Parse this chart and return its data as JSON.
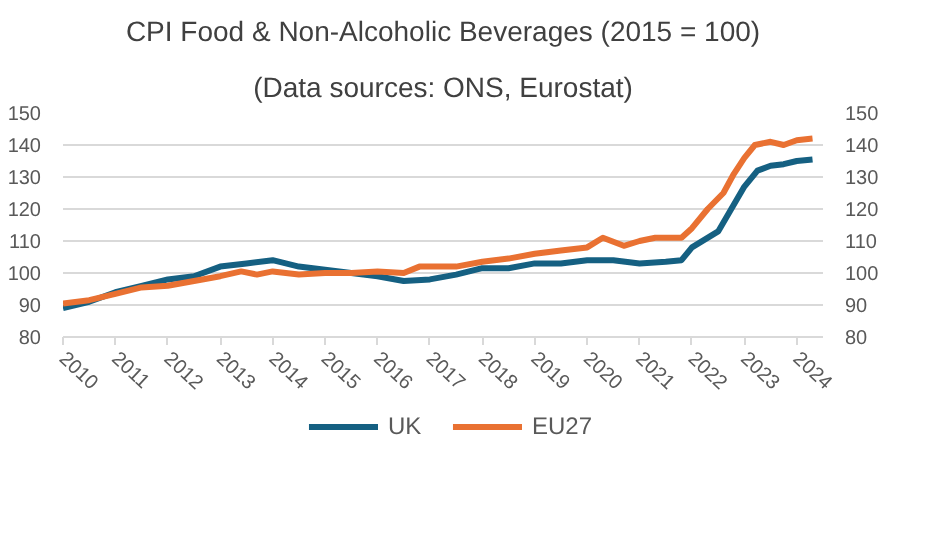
{
  "chart_data": {
    "type": "line",
    "title": "CPI Food & Non-Alcoholic Beverages (2015 = 100)",
    "subtitle": "(Data sources: ONS, Eurostat)",
    "xlim": [
      2010,
      2024.5
    ],
    "xticks": [
      2010,
      2011,
      2012,
      2013,
      2014,
      2015,
      2016,
      2017,
      2018,
      2019,
      2020,
      2021,
      2022,
      2023,
      2024
    ],
    "ylim": [
      80,
      150
    ],
    "yticks": [
      80,
      90,
      100,
      110,
      120,
      130,
      140,
      150
    ],
    "y2lim": [
      80,
      150
    ],
    "y2ticks": [
      80,
      90,
      100,
      110,
      120,
      130,
      140,
      150
    ],
    "grid": "y",
    "legend": "bottom",
    "line_style": "solid",
    "series": [
      {
        "name": "UK",
        "color": "#156082",
        "x": [
          2010,
          2010.5,
          2011,
          2011.5,
          2012,
          2012.5,
          2013,
          2013.5,
          2014,
          2014.5,
          2015,
          2015.5,
          2016,
          2016.5,
          2017,
          2017.5,
          2018,
          2018.5,
          2019,
          2019.5,
          2020,
          2020.5,
          2021,
          2021.5,
          2021.8,
          2022,
          2022.5,
          2022.75,
          2023,
          2023.25,
          2023.5,
          2023.75,
          2024,
          2024.3
        ],
        "values": [
          89,
          91,
          94,
          96,
          98,
          99,
          102,
          103,
          104,
          102,
          101,
          100,
          99,
          97.5,
          98,
          99.5,
          101.5,
          101.5,
          103,
          103,
          104,
          104,
          103,
          103.5,
          104,
          108,
          113,
          120,
          127,
          132,
          133.5,
          134,
          135,
          135.5
        ]
      },
      {
        "name": "EU27",
        "color": "#e97132",
        "x": [
          2010,
          2010.5,
          2011,
          2011.5,
          2012,
          2012.5,
          2013,
          2013.4,
          2013.7,
          2014,
          2014.5,
          2015,
          2015.5,
          2016,
          2016.5,
          2016.8,
          2017,
          2017.5,
          2018,
          2018.5,
          2019,
          2019.5,
          2020,
          2020.3,
          2020.7,
          2021,
          2021.3,
          2021.8,
          2022,
          2022.3,
          2022.6,
          2022.8,
          2023,
          2023.2,
          2023.5,
          2023.75,
          2024,
          2024.3
        ],
        "values": [
          90.5,
          91.5,
          93.5,
          95.5,
          96,
          97.5,
          99,
          100.5,
          99.5,
          100.5,
          99.5,
          100,
          100,
          100.5,
          100,
          102,
          102,
          102,
          103.5,
          104.5,
          106,
          107,
          108,
          111,
          108.5,
          110,
          111,
          111,
          114,
          120,
          125,
          131,
          136,
          140,
          141,
          140,
          141.5,
          142
        ]
      }
    ]
  }
}
